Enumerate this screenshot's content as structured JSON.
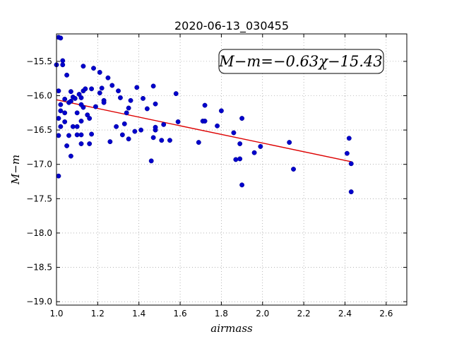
{
  "chart_data": {
    "type": "scatter",
    "title": "2020-06-13_030455",
    "xlabel": "airmass",
    "ylabel": "M−m",
    "xlim": [
      1.0,
      2.7
    ],
    "ylim": [
      -19.05,
      -15.1
    ],
    "y_inverted": true,
    "grid": true,
    "x_ticks": [
      "1.0",
      "1.2",
      "1.4",
      "1.6",
      "1.8",
      "2.0",
      "2.2",
      "2.4",
      "2.6"
    ],
    "y_ticks": [
      "−15.5",
      "−16.0",
      "−16.5",
      "−17.0",
      "−17.5",
      "−18.0",
      "−18.5",
      "−19.0"
    ],
    "annotation": "M−m=−0.63χ−15.43",
    "colors": {
      "points": "#0000cc",
      "fit": "#dd0000"
    },
    "fit": {
      "slope": -0.63,
      "intercept": -15.43,
      "x_range": [
        1.0,
        2.43
      ]
    },
    "points": [
      [
        1.0,
        -15.55
      ],
      [
        1.01,
        -15.15
      ],
      [
        1.02,
        -15.16
      ],
      [
        1.01,
        -15.93
      ],
      [
        1.01,
        -16.33
      ],
      [
        1.01,
        -16.58
      ],
      [
        1.01,
        -17.17
      ],
      [
        1.02,
        -16.13
      ],
      [
        1.02,
        -16.22
      ],
      [
        1.02,
        -16.45
      ],
      [
        1.03,
        -15.49
      ],
      [
        1.03,
        -15.55
      ],
      [
        1.04,
        -16.05
      ],
      [
        1.04,
        -16.25
      ],
      [
        1.04,
        -16.38
      ],
      [
        1.05,
        -15.7
      ],
      [
        1.05,
        -16.73
      ],
      [
        1.06,
        -16.1
      ],
      [
        1.06,
        -16.58
      ],
      [
        1.07,
        -16.88
      ],
      [
        1.07,
        -16.08
      ],
      [
        1.07,
        -15.94
      ],
      [
        1.08,
        -16.45
      ],
      [
        1.08,
        -16.02
      ],
      [
        1.09,
        -16.04
      ],
      [
        1.1,
        -16.25
      ],
      [
        1.1,
        -16.45
      ],
      [
        1.1,
        -16.57
      ],
      [
        1.11,
        -15.98
      ],
      [
        1.12,
        -16.37
      ],
      [
        1.12,
        -16.13
      ],
      [
        1.12,
        -16.03
      ],
      [
        1.12,
        -16.57
      ],
      [
        1.12,
        -16.7
      ],
      [
        1.13,
        -15.57
      ],
      [
        1.13,
        -16.17
      ],
      [
        1.13,
        -15.93
      ],
      [
        1.14,
        -15.9
      ],
      [
        1.15,
        -16.28
      ],
      [
        1.16,
        -16.33
      ],
      [
        1.16,
        -16.7
      ],
      [
        1.17,
        -16.56
      ],
      [
        1.17,
        -15.9
      ],
      [
        1.18,
        -15.6
      ],
      [
        1.19,
        -16.16
      ],
      [
        1.21,
        -15.96
      ],
      [
        1.21,
        -15.66
      ],
      [
        1.22,
        -15.89
      ],
      [
        1.23,
        -16.07
      ],
      [
        1.23,
        -16.1
      ],
      [
        1.25,
        -15.74
      ],
      [
        1.26,
        -16.67
      ],
      [
        1.27,
        -15.85
      ],
      [
        1.29,
        -16.45
      ],
      [
        1.3,
        -15.93
      ],
      [
        1.31,
        -16.03
      ],
      [
        1.32,
        -16.57
      ],
      [
        1.33,
        -16.41
      ],
      [
        1.34,
        -16.25
      ],
      [
        1.35,
        -16.18
      ],
      [
        1.36,
        -16.07
      ],
      [
        1.35,
        -16.63
      ],
      [
        1.38,
        -16.52
      ],
      [
        1.39,
        -15.88
      ],
      [
        1.41,
        -16.5
      ],
      [
        1.42,
        -16.04
      ],
      [
        1.44,
        -16.19
      ],
      [
        1.46,
        -16.95
      ],
      [
        1.47,
        -15.86
      ],
      [
        1.47,
        -16.61
      ],
      [
        1.48,
        -16.12
      ],
      [
        1.48,
        -16.5
      ],
      [
        1.48,
        -16.46
      ],
      [
        1.51,
        -16.65
      ],
      [
        1.52,
        -16.42
      ],
      [
        1.55,
        -16.65
      ],
      [
        1.58,
        -15.97
      ],
      [
        1.59,
        -16.38
      ],
      [
        1.69,
        -16.68
      ],
      [
        1.71,
        -16.37
      ],
      [
        1.72,
        -16.37
      ],
      [
        1.72,
        -16.14
      ],
      [
        1.78,
        -16.44
      ],
      [
        1.8,
        -16.22
      ],
      [
        1.86,
        -16.54
      ],
      [
        1.87,
        -16.93
      ],
      [
        1.89,
        -16.92
      ],
      [
        1.89,
        -16.7
      ],
      [
        1.9,
        -16.33
      ],
      [
        1.9,
        -17.3
      ],
      [
        1.96,
        -16.83
      ],
      [
        1.99,
        -16.74
      ],
      [
        2.13,
        -16.68
      ],
      [
        2.15,
        -17.07
      ],
      [
        2.41,
        -16.84
      ],
      [
        2.42,
        -16.62
      ],
      [
        2.43,
        -17.4
      ],
      [
        2.43,
        -16.99
      ]
    ]
  }
}
